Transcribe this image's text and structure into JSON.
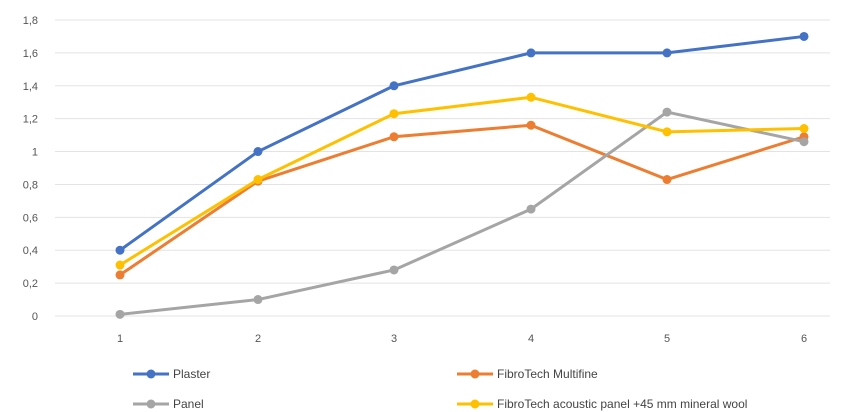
{
  "chart_data": {
    "type": "line",
    "x": [
      1,
      2,
      3,
      4,
      5,
      6
    ],
    "x_tick_labels": [
      "1",
      "2",
      "3",
      "4",
      "5",
      "6"
    ],
    "ylim": [
      0,
      1.8
    ],
    "y_ticks": [
      0,
      0.2,
      0.4,
      0.6,
      0.8,
      1.0,
      1.2,
      1.4,
      1.6,
      1.8
    ],
    "y_tick_labels": [
      "0",
      "0,2",
      "0,4",
      "0,6",
      "0,8",
      "1",
      "1,2",
      "1,4",
      "1,6",
      "1,8"
    ],
    "grid": true,
    "legend_position": "bottom",
    "series": [
      {
        "name": "Plaster",
        "color": "#4472C4",
        "values": [
          0.4,
          1.0,
          1.4,
          1.6,
          1.6,
          1.7
        ]
      },
      {
        "name": "FibroTech Multifine",
        "color": "#ED7D31",
        "values": [
          0.25,
          0.82,
          1.09,
          1.16,
          0.83,
          1.09
        ]
      },
      {
        "name": "Panel",
        "color": "#A5A5A5",
        "values": [
          0.01,
          0.1,
          0.28,
          0.65,
          1.24,
          1.06
        ]
      },
      {
        "name": "FibroTech acoustic panel +45 mm mineral wool",
        "color": "#FFC000",
        "values": [
          0.31,
          0.83,
          1.23,
          1.33,
          1.12,
          1.14
        ]
      }
    ]
  }
}
